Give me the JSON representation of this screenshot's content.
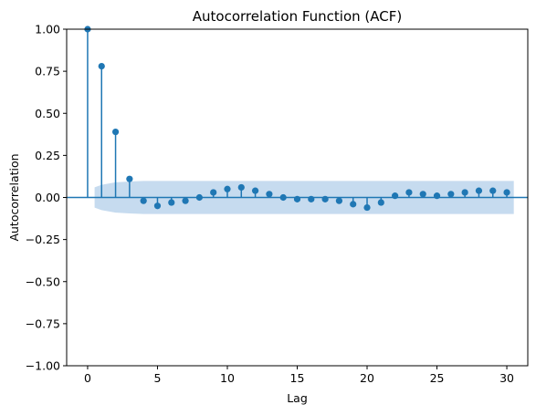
{
  "chart_data": {
    "type": "stem",
    "title": "Autocorrelation Function (ACF)",
    "xlabel": "Lag",
    "ylabel": "Autocorrelation",
    "xlim": [
      -1.5,
      31.5
    ],
    "ylim": [
      -1.0,
      1.0
    ],
    "xticks": [
      0,
      5,
      10,
      15,
      20,
      25,
      30
    ],
    "yticks": [
      -1.0,
      -0.75,
      -0.5,
      -0.25,
      0.0,
      0.25,
      0.5,
      0.75,
      1.0
    ],
    "ytick_labels": [
      "−1.00",
      "−0.75",
      "−0.50",
      "−0.25",
      "0.00",
      "0.25",
      "0.50",
      "0.75",
      "1.00"
    ],
    "xtick_labels": [
      "0",
      "5",
      "10",
      "15",
      "20",
      "25",
      "30"
    ],
    "color": "#1f77b4",
    "band_color": "#c6dbef",
    "lags": [
      0,
      1,
      2,
      3,
      4,
      5,
      6,
      7,
      8,
      9,
      10,
      11,
      12,
      13,
      14,
      15,
      16,
      17,
      18,
      19,
      20,
      21,
      22,
      23,
      24,
      25,
      26,
      27,
      28,
      29,
      30
    ],
    "acf": [
      1.0,
      0.78,
      0.39,
      0.11,
      -0.02,
      -0.05,
      -0.03,
      -0.02,
      0.0,
      0.03,
      0.05,
      0.06,
      0.04,
      0.02,
      0.0,
      -0.01,
      -0.01,
      -0.01,
      -0.02,
      -0.04,
      -0.06,
      -0.03,
      0.01,
      0.03,
      0.02,
      0.01,
      0.02,
      0.03,
      0.04,
      0.04,
      0.03
    ],
    "confidence_band": {
      "x": [
        0.5,
        1,
        2,
        3,
        4,
        30.5
      ],
      "upper": [
        0.06,
        0.075,
        0.09,
        0.095,
        0.098,
        0.098
      ],
      "lower": [
        -0.06,
        -0.075,
        -0.09,
        -0.095,
        -0.098,
        -0.098
      ]
    }
  }
}
